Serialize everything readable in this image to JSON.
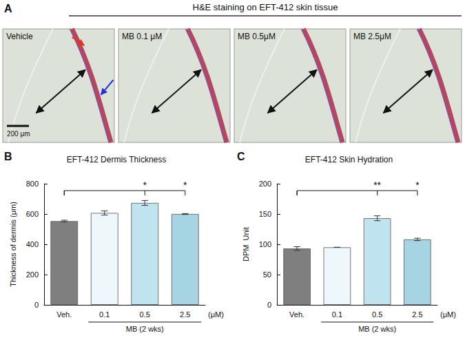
{
  "panel_a": {
    "panel": "A",
    "title": "H&E staining on EFT-412 skin tissue",
    "images": [
      {
        "label": "Vehicle"
      },
      {
        "label": "MB 0.1 μM"
      },
      {
        "label": "MB 0.5μM"
      },
      {
        "label": "MB 2.5μM"
      }
    ],
    "scale_bar": "200 μm"
  },
  "chart_data": [
    {
      "type": "bar",
      "panel": "B",
      "title": "EFT-412 Dermis Thickness",
      "ylabel": "Thickness of dermis (μm)",
      "xlabel": "(μM)",
      "categories": [
        "Veh.",
        "0.1",
        "0.5",
        "2.5"
      ],
      "values": [
        553,
        607,
        673,
        600
      ],
      "errors": [
        6,
        14,
        16,
        3
      ],
      "colors": [
        "#7f7f7f",
        "#eef7fb",
        "#bfe3ef",
        "#a6d4e3"
      ],
      "ylim": [
        0,
        800
      ],
      "yticks": [
        0,
        200,
        400,
        600,
        800
      ],
      "grid": false,
      "group": {
        "label": "MB (2 wks)",
        "categories": [
          "0.1",
          "0.5",
          "2.5"
        ]
      },
      "significance": [
        {
          "from": "Veh.",
          "to": "0.5",
          "label": "*"
        },
        {
          "from": "Veh.",
          "to": "2.5",
          "label": "*"
        }
      ]
    },
    {
      "type": "bar",
      "panel": "C",
      "title": "EFT-412 Skin Hydration",
      "ylabel": "DPM  Unit",
      "xlabel": "(μM)",
      "categories": [
        "Veh.",
        "0.1",
        "0.5",
        "2.5"
      ],
      "values": [
        93,
        95,
        143,
        108
      ],
      "errors": [
        3,
        0,
        4,
        2
      ],
      "colors": [
        "#7f7f7f",
        "#eef7fb",
        "#bfe3ef",
        "#a6d4e3"
      ],
      "ylim": [
        0,
        200
      ],
      "yticks": [
        0,
        50,
        100,
        150,
        200
      ],
      "grid": false,
      "group": {
        "label": "MB (2 wks)",
        "categories": [
          "0.1",
          "0.5",
          "2.5"
        ]
      },
      "significance": [
        {
          "from": "Veh.",
          "to": "0.5",
          "label": "**"
        },
        {
          "from": "Veh.",
          "to": "2.5",
          "label": "*"
        }
      ]
    }
  ]
}
